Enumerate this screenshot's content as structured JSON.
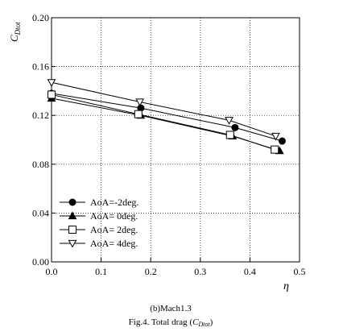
{
  "chart_data": {
    "type": "line",
    "xlabel_symbol": "η",
    "ylabel_main": "C",
    "ylabel_sub": "Dtot",
    "xlim": [
      0.0,
      0.5
    ],
    "ylim": [
      0.0,
      0.2
    ],
    "xticks": [
      0.0,
      0.1,
      0.2,
      0.3,
      0.4,
      0.5
    ],
    "xtick_labels": [
      "0.0",
      "0.1",
      "0.2",
      "0.3",
      "0.4",
      "0.5"
    ],
    "yticks": [
      0.0,
      0.04,
      0.08,
      0.12,
      0.16,
      0.2
    ],
    "ytick_labels": [
      "0.00",
      "0.04",
      "0.08",
      "0.12",
      "0.16",
      "0.20"
    ],
    "grid": true,
    "legend_position": "lower-left",
    "series": [
      {
        "name": "AoA=-2deg.",
        "marker": "circle-filled",
        "x": [
          0.0,
          0.18,
          0.37,
          0.465
        ],
        "y": [
          0.138,
          0.126,
          0.11,
          0.099
        ]
      },
      {
        "name": "AoA= 0deg.",
        "marker": "triangle-up-filled",
        "x": [
          0.0,
          0.18,
          0.365,
          0.46
        ],
        "y": [
          0.134,
          0.12,
          0.103,
          0.091
        ]
      },
      {
        "name": "AoA= 2deg.",
        "marker": "square-open",
        "x": [
          0.0,
          0.175,
          0.36,
          0.45
        ],
        "y": [
          0.137,
          0.121,
          0.104,
          0.092
        ]
      },
      {
        "name": "AoA= 4deg.",
        "marker": "triangle-down-open",
        "x": [
          0.0,
          0.178,
          0.358,
          0.452
        ],
        "y": [
          0.147,
          0.131,
          0.116,
          0.103
        ]
      }
    ]
  },
  "caption": {
    "line1": "(b)Mach1.3",
    "line2_prefix": "Fig.4. Total drag (",
    "line2_main": "C",
    "line2_sub": "Dtot",
    "line2_suffix": ")"
  }
}
